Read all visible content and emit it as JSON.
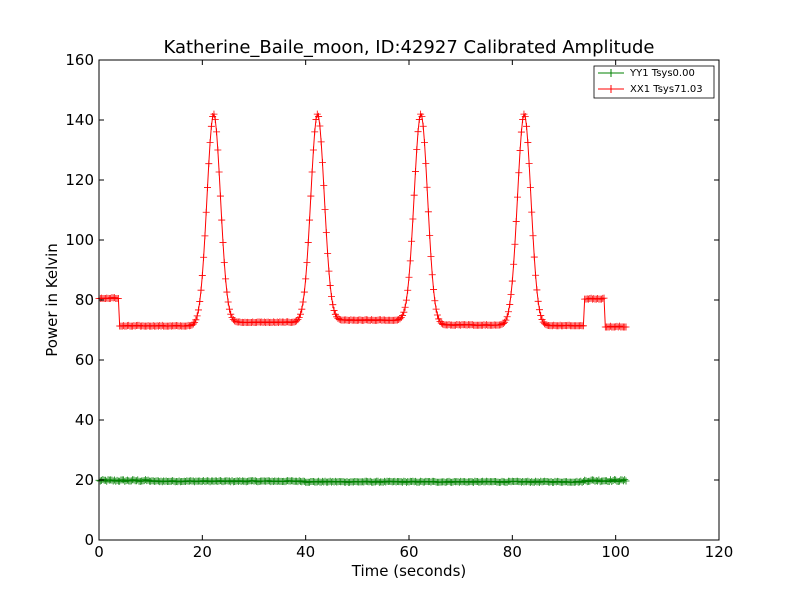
{
  "chart_data": {
    "type": "line",
    "title": "Katherine_Baile_moon, ID:42927 Calibrated Amplitude",
    "xlabel": "Time (seconds)",
    "ylabel": "Power in Kelvin",
    "xlim": [
      0,
      120
    ],
    "ylim": [
      0,
      160
    ],
    "xticks": [
      "0",
      "20",
      "40",
      "60",
      "80",
      "100",
      "120"
    ],
    "yticks": [
      "0",
      "20",
      "40",
      "60",
      "80",
      "100",
      "120",
      "140",
      "160"
    ],
    "grid": false,
    "legend_position": "top-right",
    "marker": "plus",
    "sample_interval": 0.25,
    "series": [
      {
        "name": "YY1 Tsys0.00",
        "color": "#008000",
        "segments": [
          {
            "x_start": 0,
            "x_end": 10,
            "value": 19.8,
            "noise": 0.35
          },
          {
            "x_start": 10,
            "x_end": 40,
            "value": 19.6,
            "noise": 0.2
          },
          {
            "x_start": 40,
            "x_end": 94,
            "value": 19.4,
            "noise": 0.2
          },
          {
            "x_start": 94,
            "x_end": 102,
            "value": 19.8,
            "noise": 0.35
          }
        ]
      },
      {
        "name": "XX1 Tsys71.03",
        "color": "#ff0000",
        "segments": [
          {
            "x_start": 0,
            "x_end": 4,
            "value": 80.5,
            "noise": 0.4
          },
          {
            "x_start": 4,
            "x_end": 22,
            "value": 71.3,
            "noise": 0.25
          },
          {
            "x_start": 22,
            "x_end": 42,
            "value": 72.5,
            "noise": 0.25
          },
          {
            "x_start": 42,
            "x_end": 62,
            "value": 73.2,
            "noise": 0.25
          },
          {
            "x_start": 62,
            "x_end": 82,
            "value": 71.6,
            "noise": 0.25
          },
          {
            "x_start": 82,
            "x_end": 94,
            "value": 71.4,
            "noise": 0.25
          },
          {
            "x_start": 94,
            "x_end": 98,
            "value": 80.3,
            "noise": 0.4
          },
          {
            "x_start": 98,
            "x_end": 102,
            "value": 71.0,
            "noise": 0.3
          }
        ],
        "peaks": [
          {
            "center": 22.2,
            "height": 142,
            "width": 1.3
          },
          {
            "center": 42.3,
            "height": 142,
            "width": 1.3
          },
          {
            "center": 62.3,
            "height": 142,
            "width": 1.3
          },
          {
            "center": 82.3,
            "height": 142,
            "width": 1.3
          }
        ]
      }
    ]
  }
}
